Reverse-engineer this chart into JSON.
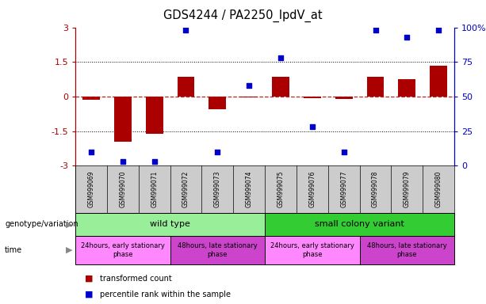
{
  "title": "GDS4244 / PA2250_lpdV_at",
  "samples": [
    "GSM999069",
    "GSM999070",
    "GSM999071",
    "GSM999072",
    "GSM999073",
    "GSM999074",
    "GSM999075",
    "GSM999076",
    "GSM999077",
    "GSM999078",
    "GSM999079",
    "GSM999080"
  ],
  "bar_values": [
    -0.13,
    -1.95,
    -1.6,
    0.85,
    -0.55,
    -0.05,
    0.85,
    -0.08,
    -0.1,
    0.85,
    0.75,
    1.35
  ],
  "dot_values": [
    10,
    3,
    3,
    98,
    10,
    58,
    78,
    28,
    10,
    98,
    93,
    98
  ],
  "bar_color": "#aa0000",
  "dot_color": "#0000cc",
  "ylim_left": [
    -3,
    3
  ],
  "ylim_right": [
    0,
    100
  ],
  "yticks_left": [
    -3,
    -1.5,
    0,
    1.5,
    3
  ],
  "yticks_right": [
    0,
    25,
    50,
    75,
    100
  ],
  "ytick_labels_left": [
    "-3",
    "-1.5",
    "0",
    "1.5",
    "3"
  ],
  "ytick_labels_right": [
    "0",
    "25",
    "50",
    "75",
    "100%"
  ],
  "hline_y": 0,
  "dotted_lines": [
    -1.5,
    1.5
  ],
  "genotype_groups": [
    {
      "label": "wild type",
      "start": 0,
      "end": 6,
      "color": "#99ee99"
    },
    {
      "label": "small colony variant",
      "start": 6,
      "end": 12,
      "color": "#33cc33"
    }
  ],
  "time_groups": [
    {
      "label": "24hours, early stationary\nphase",
      "start": 0,
      "end": 3,
      "color": "#ff88ff"
    },
    {
      "label": "48hours, late stationary\nphase",
      "start": 3,
      "end": 6,
      "color": "#cc44cc"
    },
    {
      "label": "24hours, early stationary\nphase",
      "start": 6,
      "end": 9,
      "color": "#ff88ff"
    },
    {
      "label": "48hours, late stationary\nphase",
      "start": 9,
      "end": 12,
      "color": "#cc44cc"
    }
  ],
  "legend_bar_label": "transformed count",
  "legend_dot_label": "percentile rank within the sample",
  "genotype_label": "genotype/variation",
  "time_label": "time",
  "bg_color": "#ffffff",
  "plot_bg_color": "#ffffff",
  "sample_bg_color": "#cccccc"
}
